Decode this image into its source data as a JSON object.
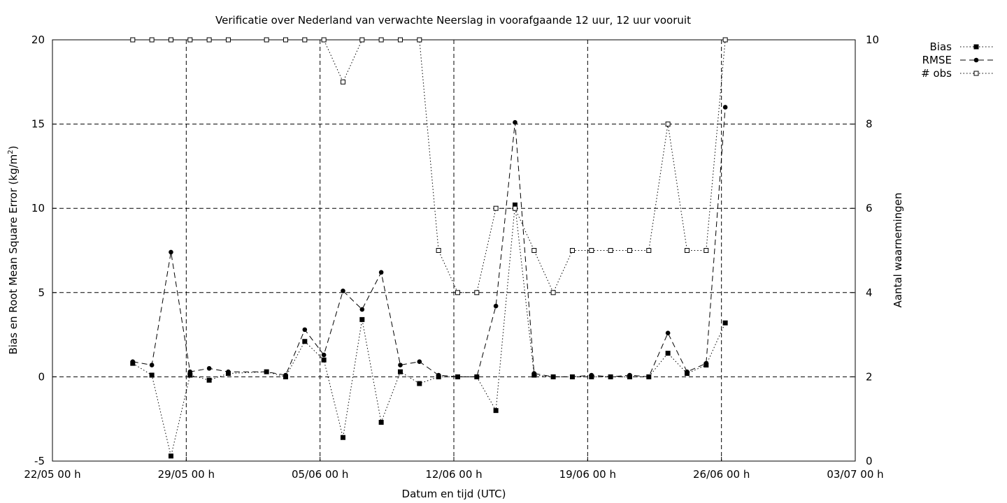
{
  "chart_data": {
    "type": "line",
    "title": "Verificatie over Nederland van verwachte Neerslag in voorafgaande 12 uur, 12 uur vooruit",
    "xlabel": "Datum en tijd (UTC)",
    "ylabel": "Bias en Root Mean Square Error (kg/m",
    "ylabel_sup": "2",
    "ylabel_suffix": ")",
    "y2label": "Aantal waarnemingen",
    "x_range": [
      "22/05 00 h",
      "03/07 00 h"
    ],
    "xlim_days": [
      0,
      42
    ],
    "ylim": [
      -5,
      20
    ],
    "y2lim": [
      0,
      10
    ],
    "x_ticks": [
      {
        "day": 0,
        "label": "22/05 00 h"
      },
      {
        "day": 7,
        "label": "29/05 00 h"
      },
      {
        "day": 14,
        "label": "05/06 00 h"
      },
      {
        "day": 21,
        "label": "12/06 00 h"
      },
      {
        "day": 28,
        "label": "19/06 00 h"
      },
      {
        "day": 35,
        "label": "26/06 00 h"
      },
      {
        "day": 42,
        "label": "03/07 00 h"
      }
    ],
    "y_ticks": [
      -5,
      0,
      5,
      10,
      15,
      20
    ],
    "y2_ticks": [
      0,
      2,
      4,
      6,
      8,
      10
    ],
    "grid": "dashed, at date ticks and y ticks",
    "legend_position": "top-right, outside plot",
    "series": [
      {
        "name": "Bias",
        "axis": "left",
        "line": "dotted",
        "marker": "filled-square",
        "points": [
          [
            4.2,
            0.8
          ],
          [
            5.2,
            0.1
          ],
          [
            6.2,
            -4.7
          ],
          [
            7.2,
            0.1
          ],
          [
            8.2,
            -0.2
          ],
          [
            9.2,
            0.2
          ],
          [
            11.2,
            0.3
          ],
          [
            12.2,
            0
          ],
          [
            13.2,
            2.1
          ],
          [
            14.2,
            1.0
          ],
          [
            15.2,
            -3.6
          ],
          [
            16.2,
            3.4
          ],
          [
            17.2,
            -2.7
          ],
          [
            18.2,
            0.3
          ],
          [
            19.2,
            -0.4
          ],
          [
            20.2,
            0
          ],
          [
            21.2,
            0
          ],
          [
            22.2,
            0
          ],
          [
            23.2,
            -2.0
          ],
          [
            24.2,
            10.2
          ],
          [
            25.2,
            0.1
          ],
          [
            26.2,
            0
          ],
          [
            27.2,
            0
          ],
          [
            28.2,
            0
          ],
          [
            29.2,
            0
          ],
          [
            30.2,
            0
          ],
          [
            31.2,
            0
          ],
          [
            32.2,
            1.4
          ],
          [
            33.2,
            0.2
          ],
          [
            34.2,
            0.7
          ],
          [
            35.2,
            3.2
          ]
        ]
      },
      {
        "name": "RMSE",
        "axis": "left",
        "line": "dashed",
        "marker": "filled-circle",
        "points": [
          [
            4.2,
            0.9
          ],
          [
            5.2,
            0.7
          ],
          [
            6.2,
            7.4
          ],
          [
            7.2,
            0.3
          ],
          [
            8.2,
            0.5
          ],
          [
            9.2,
            0.3
          ],
          [
            11.2,
            0.3
          ],
          [
            12.2,
            0.1
          ],
          [
            13.2,
            2.8
          ],
          [
            14.2,
            1.3
          ],
          [
            15.2,
            5.1
          ],
          [
            16.2,
            4.0
          ],
          [
            17.2,
            6.2
          ],
          [
            18.2,
            0.7
          ],
          [
            19.2,
            0.9
          ],
          [
            20.2,
            0.1
          ],
          [
            21.2,
            0
          ],
          [
            22.2,
            0
          ],
          [
            23.2,
            4.2
          ],
          [
            24.2,
            15.1
          ],
          [
            25.2,
            0.2
          ],
          [
            26.2,
            0
          ],
          [
            27.2,
            0
          ],
          [
            28.2,
            0.1
          ],
          [
            29.2,
            0
          ],
          [
            30.2,
            0.1
          ],
          [
            31.2,
            0
          ],
          [
            32.2,
            2.6
          ],
          [
            33.2,
            0.3
          ],
          [
            34.2,
            0.8
          ],
          [
            35.2,
            16.0
          ]
        ]
      },
      {
        "name": "# obs",
        "axis": "right",
        "line": "dotted",
        "marker": "open-square",
        "points": [
          [
            4.2,
            10
          ],
          [
            5.2,
            10
          ],
          [
            6.2,
            10
          ],
          [
            7.2,
            10
          ],
          [
            8.2,
            10
          ],
          [
            9.2,
            10
          ],
          [
            11.2,
            10
          ],
          [
            12.2,
            10
          ],
          [
            13.2,
            10
          ],
          [
            14.2,
            10
          ],
          [
            15.2,
            9
          ],
          [
            16.2,
            10
          ],
          [
            17.2,
            10
          ],
          [
            18.2,
            10
          ],
          [
            19.2,
            10
          ],
          [
            20.2,
            5
          ],
          [
            21.2,
            4
          ],
          [
            22.2,
            4
          ],
          [
            23.2,
            6
          ],
          [
            24.2,
            6
          ],
          [
            25.2,
            5
          ],
          [
            26.2,
            4
          ],
          [
            27.2,
            5
          ],
          [
            28.2,
            5
          ],
          [
            29.2,
            5
          ],
          [
            30.2,
            5
          ],
          [
            31.2,
            5
          ],
          [
            32.2,
            8
          ],
          [
            33.2,
            5
          ],
          [
            34.2,
            5
          ],
          [
            35.2,
            10
          ]
        ]
      }
    ]
  }
}
